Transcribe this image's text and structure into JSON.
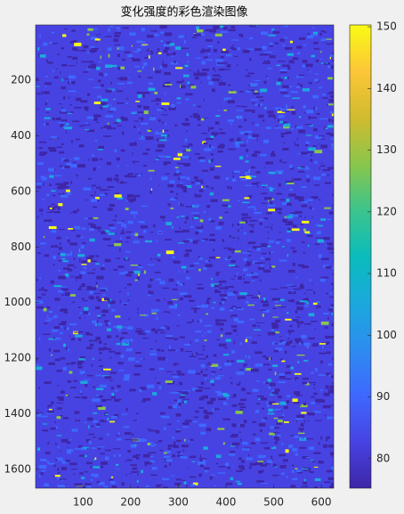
{
  "chart_data": {
    "type": "image",
    "title": "变化强度的彩色渲染图像",
    "xlim": [
      0.5,
      626
    ],
    "xticks": [
      100,
      200,
      300,
      400,
      500,
      600
    ],
    "ylim": [
      0.5,
      1668
    ],
    "yticks": [
      200,
      400,
      600,
      800,
      1000,
      1200,
      1400,
      1600
    ],
    "y_reversed": true,
    "colormap": "parula",
    "colorbar": {
      "clim": [
        75.2,
        150.3
      ],
      "ticks": [
        80,
        90,
        100,
        110,
        120,
        130,
        140,
        150
      ]
    }
  }
}
